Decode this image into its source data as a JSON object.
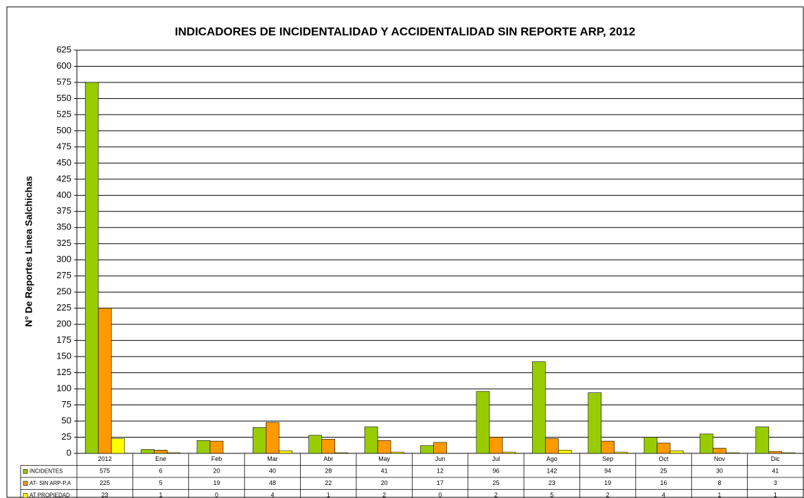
{
  "chart_data": {
    "type": "bar",
    "title": "INDICADORES DE INCIDENTALIDAD Y ACCIDENTALIDAD SIN REPORTE ARP, 2012",
    "y_label": "N° De Reportes Linea Salchichas",
    "categories": [
      "2012",
      "Ene",
      "Feb",
      "Mar",
      "Abr",
      "May",
      "Jun",
      "Jul",
      "Ago",
      "Sep",
      "Oct",
      "Nov",
      "Dic"
    ],
    "series": [
      {
        "name": "INCIDENTES",
        "color": "#99cc00",
        "values": [
          575,
          6,
          20,
          40,
          28,
          41,
          12,
          96,
          142,
          94,
          25,
          30,
          41
        ]
      },
      {
        "name": "AT- SIN ARP-P.A",
        "color": "#ff9900",
        "values": [
          225,
          5,
          19,
          48,
          22,
          20,
          17,
          25,
          23,
          19,
          16,
          8,
          3
        ]
      },
      {
        "name": "AT PROPIEDAD",
        "color": "#ffff00",
        "values": [
          23,
          1,
          0,
          4,
          1,
          2,
          0,
          2,
          5,
          2,
          4,
          1,
          1
        ]
      }
    ],
    "ylim": [
      0,
      625
    ],
    "yticks": [
      0,
      25,
      50,
      75,
      100,
      125,
      150,
      175,
      200,
      225,
      250,
      275,
      300,
      325,
      350,
      375,
      400,
      425,
      450,
      475,
      500,
      525,
      550,
      575,
      600,
      625
    ],
    "grid": true
  }
}
